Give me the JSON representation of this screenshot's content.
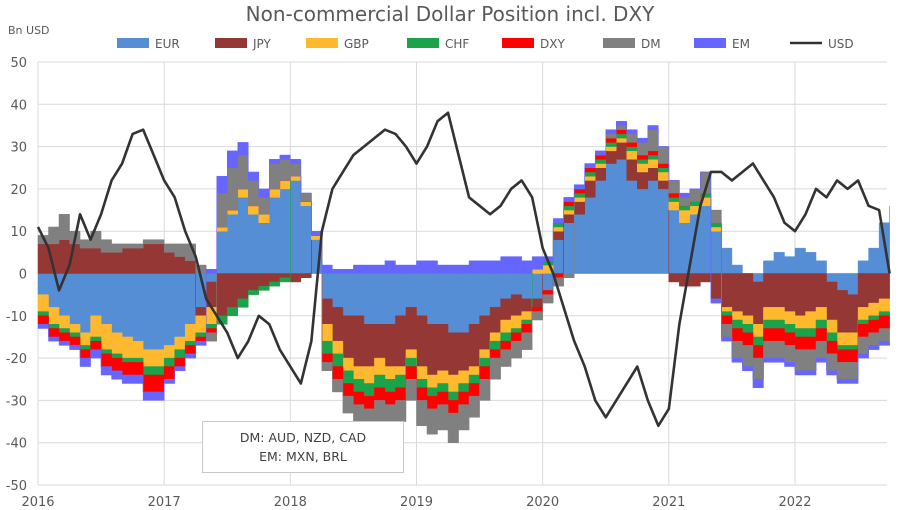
{
  "chart_data": {
    "type": "area",
    "stacked": true,
    "title": "Non-commercial Dollar Position incl. DXY",
    "ylabel": "Bn USD",
    "xlabel": "",
    "ylim": [
      -50,
      50
    ],
    "xlim": [
      2016,
      2022.8
    ],
    "yticks": [
      50,
      40,
      30,
      20,
      10,
      0,
      -10,
      -20,
      -30,
      -40,
      -50
    ],
    "xticks": [
      2016,
      2017,
      2018,
      2019,
      2020,
      2021,
      2022
    ],
    "grid": true,
    "legend_position": "top",
    "annotation": [
      "DM: AUD, NZD, CAD",
      "EM: MXN, BRL"
    ],
    "x_start": 2016.0,
    "x_step_months": 1,
    "series": [
      {
        "name": "EUR",
        "type": "area",
        "color": "#558ed5",
        "values": [
          -5,
          -8,
          -10,
          -12,
          -14,
          -10,
          -12,
          -14,
          -15,
          -16,
          -18,
          -18,
          -17,
          -15,
          -12,
          -8,
          -2,
          10,
          14,
          18,
          14,
          12,
          18,
          20,
          22,
          16,
          8,
          -6,
          -8,
          -10,
          -10,
          -12,
          -12,
          -12,
          -10,
          -8,
          -10,
          -12,
          -12,
          -14,
          -14,
          -12,
          -10,
          -8,
          -6,
          -5,
          -6,
          -6,
          -4,
          8,
          12,
          14,
          18,
          22,
          26,
          27,
          22,
          20,
          22,
          20,
          15,
          12,
          14,
          16,
          10,
          6,
          2,
          0,
          -2,
          3,
          5,
          4,
          6,
          5,
          3,
          -2,
          -4,
          -5,
          3,
          6,
          12,
          16
        ]
      },
      {
        "name": "JPY",
        "type": "area",
        "color": "#953735",
        "values": [
          7,
          7,
          8,
          7,
          6,
          6,
          5,
          5,
          6,
          6,
          7,
          7,
          5,
          4,
          3,
          -2,
          -6,
          -10,
          -8,
          -6,
          -4,
          -3,
          -2,
          -1,
          -2,
          -1,
          0,
          -6,
          -8,
          -10,
          -12,
          -10,
          -8,
          -10,
          -12,
          -10,
          -12,
          -12,
          -11,
          -10,
          -9,
          -10,
          -8,
          -6,
          -5,
          -5,
          -3,
          -2,
          0,
          2,
          2,
          3,
          4,
          3,
          3,
          4,
          5,
          4,
          3,
          2,
          -2,
          -3,
          -3,
          -2,
          -6,
          -8,
          -9,
          -10,
          -10,
          -8,
          -8,
          -9,
          -10,
          -9,
          -8,
          -9,
          -10,
          -9,
          -8,
          -7,
          -6,
          -6
        ]
      },
      {
        "name": "GBP",
        "type": "area",
        "color": "#ffb92e",
        "values": [
          -4,
          -4,
          -3,
          -2,
          -3,
          -5,
          -6,
          -5,
          -5,
          -4,
          -4,
          -4,
          -3,
          -3,
          -4,
          -4,
          -4,
          1,
          1,
          2,
          2,
          2,
          2,
          2,
          1,
          1,
          1,
          -4,
          -3,
          -3,
          -3,
          -4,
          -4,
          -3,
          -2,
          -2,
          -3,
          -3,
          -3,
          -4,
          -3,
          -2,
          -2,
          -2,
          -3,
          -3,
          -2,
          1,
          2,
          1,
          1,
          1,
          1,
          1,
          1,
          1,
          2,
          2,
          2,
          2,
          2,
          3,
          2,
          2,
          1,
          -1,
          -2,
          -2,
          -3,
          -3,
          -3,
          -3,
          -3,
          -4,
          -3,
          -3,
          -3,
          -3,
          -3,
          -3,
          -3,
          -3
        ]
      },
      {
        "name": "CHF",
        "type": "area",
        "color": "#1aa34a",
        "values": [
          -1,
          -1,
          -1,
          -1,
          -1,
          -1,
          -1,
          -1,
          -1,
          -1,
          -2,
          -2,
          -2,
          -2,
          -1,
          -1,
          -1,
          -2,
          -2,
          -2,
          -1,
          -1,
          -1,
          -1,
          0,
          0,
          0,
          -3,
          -3,
          -3,
          -3,
          -3,
          -3,
          -3,
          -3,
          -2,
          -2,
          -2,
          -2,
          -2,
          -2,
          -2,
          -2,
          -2,
          -2,
          -1,
          -1,
          0,
          1,
          1,
          1,
          1,
          1,
          1,
          1,
          1,
          1,
          1,
          1,
          1,
          1,
          1,
          1,
          1,
          1,
          -1,
          -2,
          -2,
          -2,
          -2,
          -2,
          -2,
          -2,
          -2,
          -2,
          -2,
          -1,
          -1,
          -1,
          -1,
          -1,
          -1
        ]
      },
      {
        "name": "DXY",
        "type": "area",
        "color": "#ff0000",
        "values": [
          -2,
          -2,
          -2,
          -2,
          -2,
          -2,
          -3,
          -3,
          -3,
          -3,
          -4,
          -4,
          -3,
          -2,
          -2,
          -1,
          -1,
          0,
          0,
          0,
          0,
          0,
          0,
          0,
          0,
          0,
          0,
          -2,
          -3,
          -3,
          -3,
          -3,
          -3,
          -3,
          -3,
          -3,
          -3,
          -3,
          -3,
          -3,
          -3,
          -3,
          -3,
          -2,
          -2,
          -2,
          -2,
          -1,
          -1,
          -1,
          1,
          1,
          1,
          1,
          1,
          1,
          1,
          1,
          1,
          1,
          1,
          0,
          0,
          0,
          0,
          -2,
          -3,
          -3,
          -3,
          -3,
          -3,
          -3,
          -3,
          -3,
          -3,
          -3,
          -3,
          -3,
          -3,
          -3,
          -3,
          -3
        ]
      },
      {
        "name": "DM",
        "type": "area",
        "color": "#808080",
        "values": [
          2,
          4,
          6,
          3,
          2,
          4,
          3,
          2,
          1,
          1,
          1,
          1,
          2,
          3,
          4,
          2,
          -2,
          8,
          10,
          8,
          6,
          4,
          6,
          5,
          3,
          2,
          0,
          -2,
          -3,
          -4,
          -5,
          -6,
          -5,
          -4,
          -5,
          -5,
          -6,
          -6,
          -6,
          -7,
          -6,
          -5,
          -5,
          -5,
          -4,
          -4,
          -4,
          -2,
          -2,
          -2,
          -1,
          0,
          0,
          0,
          1,
          1,
          2,
          3,
          5,
          4,
          3,
          2,
          3,
          5,
          3,
          -3,
          -4,
          -5,
          -5,
          -4,
          -4,
          -4,
          -5,
          -5,
          -4,
          -4,
          -4,
          -4,
          -4,
          -3,
          -3,
          -3
        ]
      },
      {
        "name": "EM",
        "type": "area",
        "color": "#6666ff",
        "values": [
          -1,
          -1,
          -1,
          -1,
          -2,
          -2,
          -2,
          -2,
          -2,
          -2,
          -2,
          -2,
          -1,
          -1,
          -1,
          -1,
          1,
          4,
          4,
          3,
          2,
          2,
          1,
          1,
          1,
          0,
          1,
          2,
          1,
          1,
          2,
          2,
          2,
          3,
          2,
          2,
          3,
          3,
          2,
          2,
          2,
          3,
          3,
          3,
          4,
          4,
          3,
          3,
          1,
          1,
          1,
          1,
          1,
          1,
          1,
          1,
          1,
          1,
          1,
          0,
          0,
          1,
          0,
          0,
          -1,
          -1,
          -1,
          -1,
          -2,
          -1,
          -1,
          -1,
          -1,
          -1,
          -1,
          -1,
          -1,
          -1,
          -1,
          -1,
          -1,
          -1
        ]
      },
      {
        "name": "USD",
        "type": "line",
        "color": "#333333",
        "values": [
          11,
          6,
          -4,
          2,
          14,
          8,
          14,
          22,
          26,
          33,
          34,
          28,
          22,
          18,
          10,
          4,
          -6,
          -10,
          -14,
          -20,
          -16,
          -10,
          -12,
          -18,
          -22,
          -26,
          -16,
          10,
          20,
          24,
          28,
          30,
          32,
          34,
          33,
          30,
          26,
          30,
          36,
          38,
          28,
          18,
          16,
          14,
          16,
          20,
          22,
          18,
          6,
          0,
          -8,
          -16,
          -22,
          -30,
          -34,
          -30,
          -26,
          -22,
          -30,
          -36,
          -32,
          -12,
          2,
          16,
          24,
          24,
          22,
          24,
          26,
          22,
          18,
          12,
          10,
          14,
          20,
          18,
          22,
          20,
          22,
          16,
          15,
          0
        ]
      }
    ]
  }
}
